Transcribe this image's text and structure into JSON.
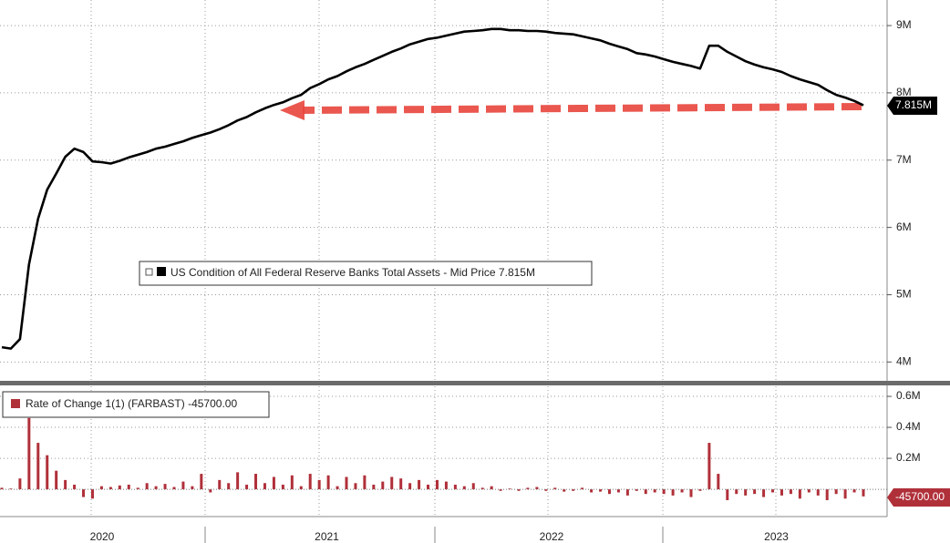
{
  "chart_data": [
    {
      "type": "line",
      "series": [
        {
          "name": "US Condition of All Federal Reserve Banks Total Assets - Mid Price 7.815M",
          "color": "#000000",
          "values": [
            4.22,
            4.2,
            4.34,
            5.45,
            6.13,
            6.56,
            6.8,
            7.05,
            7.17,
            7.12,
            6.98,
            6.97,
            6.95,
            6.99,
            7.04,
            7.08,
            7.12,
            7.17,
            7.2,
            7.24,
            7.28,
            7.33,
            7.37,
            7.41,
            7.46,
            7.52,
            7.59,
            7.64,
            7.71,
            7.77,
            7.82,
            7.86,
            7.92,
            7.97,
            8.07,
            8.13,
            8.2,
            8.25,
            8.32,
            8.38,
            8.43,
            8.49,
            8.55,
            8.61,
            8.66,
            8.72,
            8.76,
            8.8,
            8.82,
            8.85,
            8.88,
            8.91,
            8.92,
            8.93,
            8.95,
            8.95,
            8.93,
            8.93,
            8.92,
            8.92,
            8.91,
            8.89,
            8.88,
            8.87,
            8.84,
            8.81,
            8.78,
            8.73,
            8.69,
            8.65,
            8.59,
            8.57,
            8.54,
            8.5,
            8.46,
            8.43,
            8.4,
            8.36,
            8.7,
            8.7,
            8.61,
            8.54,
            8.47,
            8.42,
            8.38,
            8.35,
            8.31,
            8.25,
            8.2,
            8.16,
            8.12,
            8.04,
            7.97,
            7.93,
            7.88,
            7.815
          ]
        }
      ],
      "last_label": "7.815M",
      "ylim": [
        3.72,
        9.38
      ],
      "yticks": [
        {
          "value": 4,
          "label": "4M"
        },
        {
          "value": 5,
          "label": "5M"
        },
        {
          "value": 6,
          "label": "6M"
        },
        {
          "value": 7,
          "label": "7M"
        },
        {
          "value": 8,
          "label": "8M"
        },
        {
          "value": 9,
          "label": "9M"
        }
      ],
      "grid": true
    },
    {
      "type": "bar",
      "series": [
        {
          "name": "Rate of Change 1(1) (FARBAST) -45700.00",
          "color": "#b0303a",
          "values": [
            10000,
            5000,
            70000,
            460000,
            300000,
            220000,
            120000,
            60000,
            30000,
            -50000,
            -60000,
            20000,
            15000,
            25000,
            30000,
            10000,
            40000,
            20000,
            35000,
            15000,
            50000,
            20000,
            100000,
            -20000,
            60000,
            40000,
            110000,
            30000,
            100000,
            40000,
            80000,
            30000,
            90000,
            20000,
            100000,
            60000,
            90000,
            20000,
            80000,
            40000,
            90000,
            30000,
            50000,
            80000,
            70000,
            40000,
            60000,
            30000,
            60000,
            50000,
            30000,
            20000,
            40000,
            10000,
            20000,
            -10000,
            5000,
            -10000,
            10000,
            15000,
            -10000,
            10000,
            -15000,
            -10000,
            10000,
            -20000,
            -15000,
            -30000,
            -20000,
            -40000,
            -10000,
            -30000,
            -20000,
            -30000,
            -40000,
            -20000,
            -50000,
            -10000,
            300000,
            100000,
            -70000,
            -30000,
            -40000,
            -30000,
            -50000,
            -20000,
            -40000,
            -30000,
            -60000,
            -20000,
            -40000,
            -70000,
            -30000,
            -60000,
            -20000,
            -45700
          ]
        }
      ],
      "last_label": "-45700.00",
      "ylim": [
        -176000,
        665000
      ],
      "yticks": [
        {
          "value": 200000,
          "label": "0.2M"
        },
        {
          "value": 400000,
          "label": "0.4M"
        },
        {
          "value": 600000,
          "label": "0.6M"
        }
      ],
      "x_labels": [
        "2020",
        "2021",
        "2022",
        "2023"
      ],
      "grid": true
    }
  ]
}
